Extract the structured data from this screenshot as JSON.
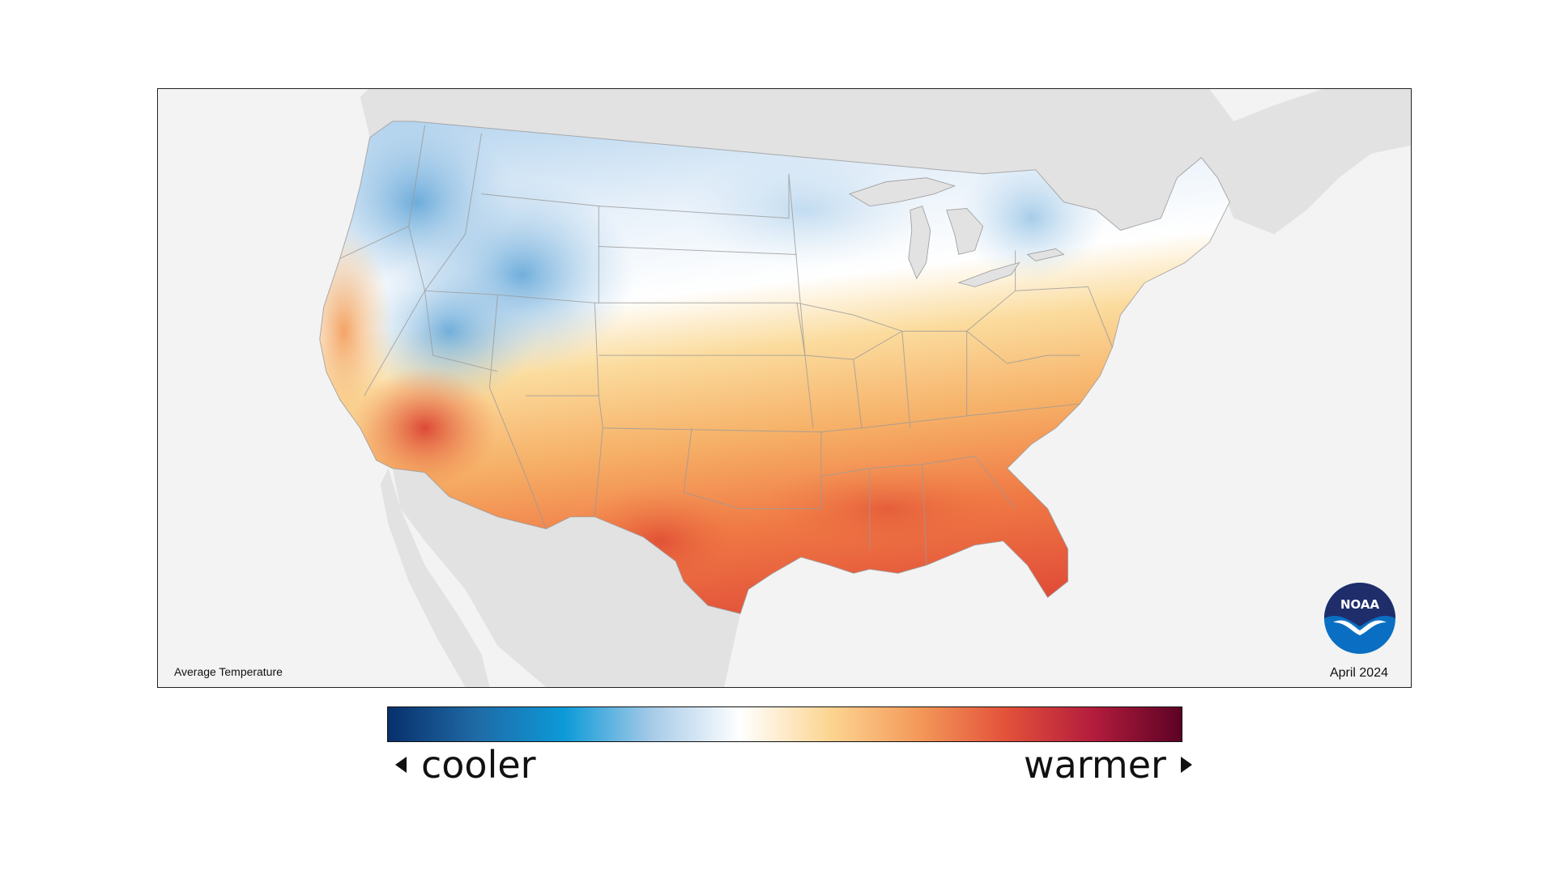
{
  "map": {
    "caption": "Average Temperature",
    "date": "April 2024",
    "logo_text": "NOAA",
    "background_color": "#f3f3f3",
    "land_color": "#e2e2e2",
    "state_border_color": "#9a9a9a"
  },
  "legend": {
    "left_label": "cooler",
    "right_label": "warmer",
    "colors": [
      "#08306b",
      "#1f6aa6",
      "#0c9ad8",
      "#a7cbe8",
      "#ffffff",
      "#fcd592",
      "#f49a5a",
      "#e3523a",
      "#b31c3c",
      "#5c0225"
    ]
  }
}
